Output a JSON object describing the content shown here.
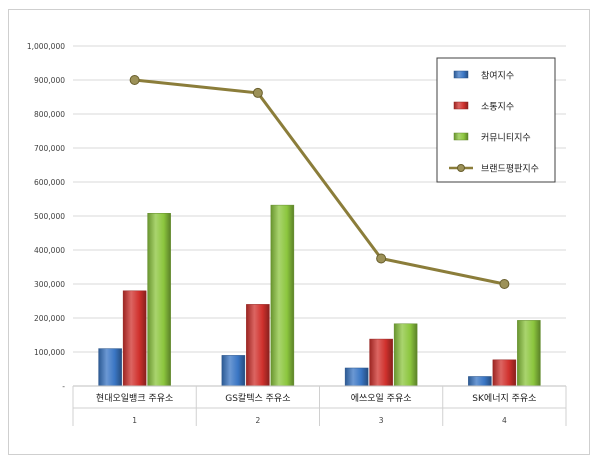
{
  "chart_data": {
    "type": "bar",
    "categories": [
      "현대오일뱅크 주유소",
      "GS칼텍스 주유소",
      "에쓰오일 주유소",
      "SK에너지 주유소"
    ],
    "category_numbers": [
      "1",
      "2",
      "3",
      "4"
    ],
    "y_tick_labels": [
      "-",
      "100,000",
      "200,000",
      "300,000",
      "400,000",
      "500,000",
      "600,000",
      "700,000",
      "800,000",
      "900,000",
      "1,000,000"
    ],
    "ylim": [
      0,
      1000000
    ],
    "grid": true,
    "legend_position": "top-right",
    "series": [
      {
        "name": "참여지수",
        "type": "bar",
        "color": "#3a76c4",
        "values": [
          110000,
          90000,
          53000,
          28000
        ]
      },
      {
        "name": "소통지수",
        "type": "bar",
        "color": "#d0312d",
        "values": [
          280000,
          240000,
          138000,
          77000
        ]
      },
      {
        "name": "커뮤니티지수",
        "type": "bar",
        "color": "#8cc63e",
        "values": [
          508000,
          532000,
          183000,
          193000
        ]
      },
      {
        "name": "브랜드평판지수",
        "type": "line",
        "color": "#8b7d3a",
        "values": [
          900000,
          862000,
          375000,
          300000
        ]
      }
    ]
  }
}
